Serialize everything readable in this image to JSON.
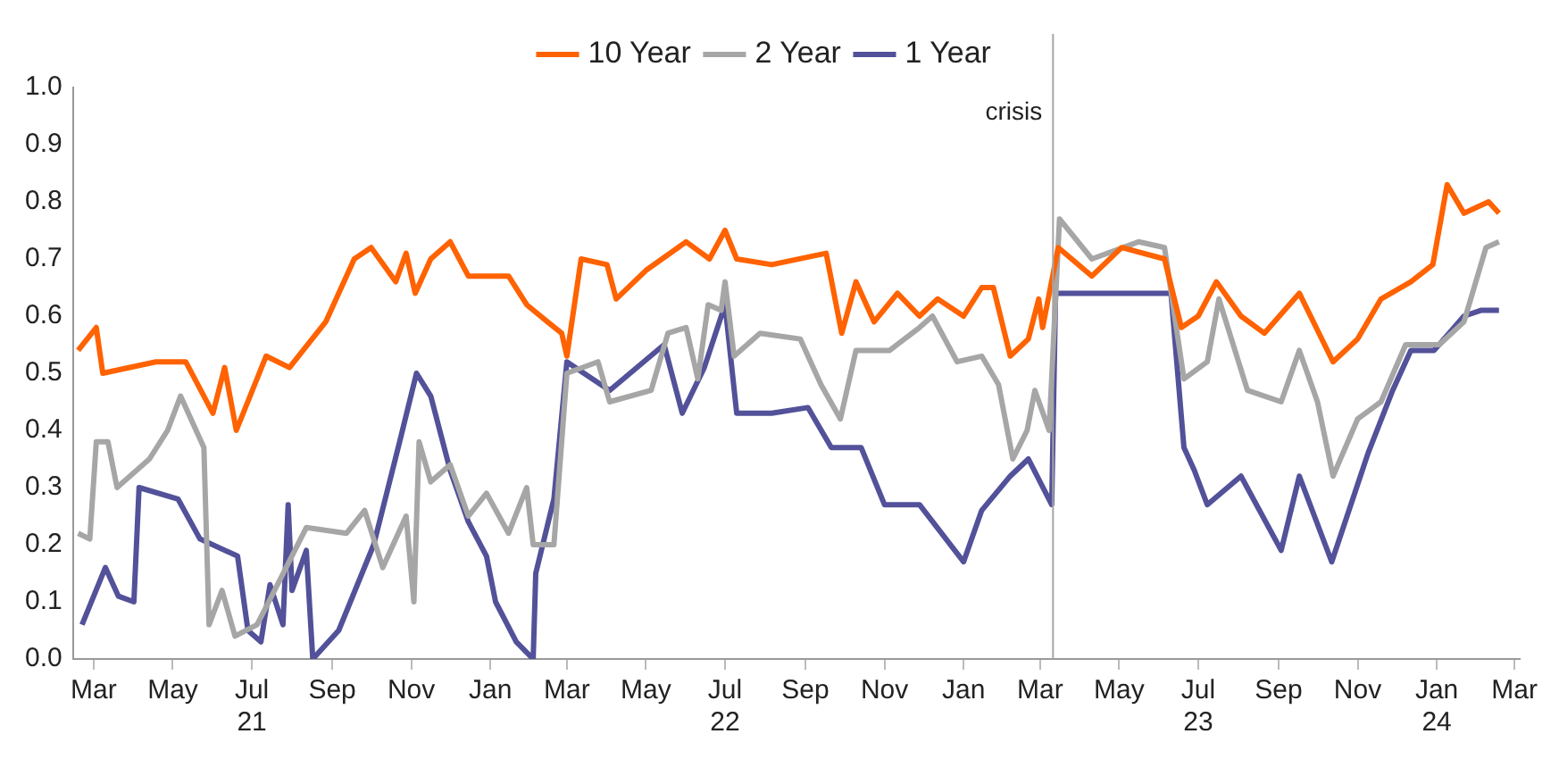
{
  "chart_data": {
    "type": "line",
    "legend": "top",
    "marker": "none",
    "line_style": "solid",
    "xlim": [
      "2021-02-13",
      "2024-03-05"
    ],
    "xticks": [
      {
        "value": "2021-03",
        "label": "Mar"
      },
      {
        "value": "2021-05",
        "label": "May"
      },
      {
        "value": "2021-07",
        "label": "Jul\n21"
      },
      {
        "value": "2021-09",
        "label": "Sep"
      },
      {
        "value": "2021-11",
        "label": "Nov"
      },
      {
        "value": "2022-01",
        "label": "Jan"
      },
      {
        "value": "2022-03",
        "label": "Mar"
      },
      {
        "value": "2022-05",
        "label": "May"
      },
      {
        "value": "2022-07",
        "label": "Jul\n22"
      },
      {
        "value": "2022-09",
        "label": "Sep"
      },
      {
        "value": "2022-11",
        "label": "Nov"
      },
      {
        "value": "2023-01",
        "label": "Jan"
      },
      {
        "value": "2023-03",
        "label": "Mar"
      },
      {
        "value": "2023-05",
        "label": "May"
      },
      {
        "value": "2023-07",
        "label": "Jul\n23"
      },
      {
        "value": "2023-09",
        "label": "Sep"
      },
      {
        "value": "2023-11",
        "label": "Nov"
      },
      {
        "value": "2024-01",
        "label": "Jan\n24"
      },
      {
        "value": "2024-03",
        "label": "Mar"
      }
    ],
    "ylim": [
      0,
      1
    ],
    "yticks": [
      {
        "value": 0,
        "label": "0.0"
      },
      0.1,
      0.2,
      0.3,
      0.4,
      0.5,
      0.6,
      0.7,
      0.8,
      0.9,
      {
        "value": 1,
        "label": "1.0"
      }
    ],
    "ref_lines": [
      {
        "axis": "x",
        "value": "2023-03-11",
        "label": "crisis",
        "color": "#a6a6a6"
      }
    ],
    "series": [
      {
        "name": "10 Year",
        "color": "#ff6200",
        "x": [
          "2021-02-17",
          "2021-03-03",
          "2021-03-08",
          "2021-04-18",
          "2021-05-11",
          "2021-06-01",
          "2021-06-10",
          "2021-06-19",
          "2021-07-12",
          "2021-07-30",
          "2021-08-27",
          "2021-09-18",
          "2021-10-01",
          "2021-10-20",
          "2021-10-28",
          "2021-11-04",
          "2021-11-16",
          "2021-12-01",
          "2021-12-15",
          "2022-01-15",
          "2022-01-29",
          "2022-02-14",
          "2022-02-25",
          "2022-03-01",
          "2022-03-12",
          "2022-04-01",
          "2022-04-08",
          "2022-05-01",
          "2022-06-01",
          "2022-06-19",
          "2022-07-01",
          "2022-07-10",
          "2022-08-06",
          "2022-09-17",
          "2022-09-29",
          "2022-10-10",
          "2022-10-24",
          "2022-11-11",
          "2022-11-28",
          "2022-12-12",
          "2023-01-01",
          "2023-01-15",
          "2023-01-24",
          "2023-02-06",
          "2023-02-20",
          "2023-02-28",
          "2023-03-03",
          "2023-03-15",
          "2023-04-10",
          "2023-05-03",
          "2023-06-05",
          "2023-06-18",
          "2023-07-01",
          "2023-07-15",
          "2023-08-03",
          "2023-08-21",
          "2023-09-17",
          "2023-10-13",
          "2023-11-01",
          "2023-11-19",
          "2023-12-12",
          "2023-12-29",
          "2024-01-09",
          "2024-01-22",
          "2024-02-10",
          "2024-02-18"
        ],
        "values": [
          0.54,
          0.58,
          0.5,
          0.52,
          0.52,
          0.43,
          0.51,
          0.4,
          0.53,
          0.51,
          0.59,
          0.7,
          0.72,
          0.66,
          0.71,
          0.64,
          0.7,
          0.73,
          0.67,
          0.67,
          0.62,
          0.59,
          0.57,
          0.53,
          0.7,
          0.69,
          0.63,
          0.68,
          0.73,
          0.7,
          0.75,
          0.7,
          0.69,
          0.71,
          0.57,
          0.66,
          0.59,
          0.64,
          0.6,
          0.63,
          0.6,
          0.65,
          0.65,
          0.53,
          0.56,
          0.63,
          0.58,
          0.72,
          0.67,
          0.72,
          0.7,
          0.58,
          0.6,
          0.66,
          0.6,
          0.57,
          0.64,
          0.52,
          0.56,
          0.63,
          0.66,
          0.69,
          0.83,
          0.78,
          0.8,
          0.78
        ]
      },
      {
        "name": "2 Year",
        "color": "#a6a6a6",
        "x": [
          "2021-02-17",
          "2021-02-26",
          "2021-03-03",
          "2021-03-12",
          "2021-03-19",
          "2021-04-13",
          "2021-04-27",
          "2021-05-07",
          "2021-05-25",
          "2021-05-29",
          "2021-06-08",
          "2021-06-18",
          "2021-07-05",
          "2021-07-23",
          "2021-08-12",
          "2021-09-12",
          "2021-09-26",
          "2021-10-10",
          "2021-10-28",
          "2021-11-03",
          "2021-11-07",
          "2021-11-16",
          "2021-12-01",
          "2021-12-15",
          "2021-12-29",
          "2022-01-15",
          "2022-01-29",
          "2022-02-03",
          "2022-02-19",
          "2022-03-01",
          "2022-03-25",
          "2022-04-03",
          "2022-05-05",
          "2022-05-18",
          "2022-06-01",
          "2022-06-10",
          "2022-06-18",
          "2022-06-28",
          "2022-07-01",
          "2022-07-08",
          "2022-07-28",
          "2022-08-28",
          "2022-09-13",
          "2022-09-28",
          "2022-10-10",
          "2022-11-05",
          "2022-11-28",
          "2022-12-08",
          "2022-12-27",
          "2023-01-15",
          "2023-01-28",
          "2023-02-08",
          "2023-02-19",
          "2023-02-25",
          "2023-03-08",
          "2023-03-16",
          "2023-04-10",
          "2023-05-16",
          "2023-06-05",
          "2023-06-20",
          "2023-07-08",
          "2023-07-17",
          "2023-08-08",
          "2023-09-03",
          "2023-09-17",
          "2023-10-01",
          "2023-10-13",
          "2023-11-01",
          "2023-11-19",
          "2023-12-08",
          "2024-01-03",
          "2024-01-22",
          "2024-02-08",
          "2024-02-18"
        ],
        "values": [
          0.22,
          0.21,
          0.38,
          0.38,
          0.3,
          0.35,
          0.4,
          0.46,
          0.37,
          0.06,
          0.12,
          0.04,
          0.06,
          0.14,
          0.23,
          0.22,
          0.26,
          0.16,
          0.25,
          0.1,
          0.38,
          0.31,
          0.34,
          0.25,
          0.29,
          0.22,
          0.3,
          0.2,
          0.2,
          0.5,
          0.52,
          0.45,
          0.47,
          0.57,
          0.58,
          0.49,
          0.62,
          0.61,
          0.66,
          0.53,
          0.57,
          0.56,
          0.48,
          0.42,
          0.54,
          0.54,
          0.58,
          0.6,
          0.52,
          0.53,
          0.48,
          0.35,
          0.4,
          0.47,
          0.4,
          0.77,
          0.7,
          0.73,
          0.72,
          0.49,
          0.52,
          0.63,
          0.47,
          0.45,
          0.54,
          0.45,
          0.32,
          0.42,
          0.45,
          0.55,
          0.55,
          0.59,
          0.72,
          0.73
        ]
      },
      {
        "name": "1 Year",
        "color": "#525199",
        "x": [
          "2021-02-20",
          "2021-03-01",
          "2021-03-10",
          "2021-03-20",
          "2021-04-01",
          "2021-04-05",
          "2021-05-05",
          "2021-05-22",
          "2021-06-20",
          "2021-06-28",
          "2021-07-08",
          "2021-07-15",
          "2021-07-25",
          "2021-07-29",
          "2021-08-01",
          "2021-08-12",
          "2021-08-17",
          "2021-09-06",
          "2021-10-03",
          "2021-10-23",
          "2021-11-05",
          "2021-11-16",
          "2021-12-01",
          "2021-12-15",
          "2021-12-29",
          "2022-01-05",
          "2022-01-21",
          "2022-02-03",
          "2022-02-05",
          "2022-02-19",
          "2022-03-01",
          "2022-04-03",
          "2022-05-15",
          "2022-05-29",
          "2022-06-15",
          "2022-07-01",
          "2022-07-10",
          "2022-08-06",
          "2022-09-03",
          "2022-09-21",
          "2022-10-14",
          "2022-11-01",
          "2022-11-28",
          "2023-01-01",
          "2023-01-15",
          "2023-02-06",
          "2023-02-20",
          "2023-03-10",
          "2023-03-13",
          "2023-06-10",
          "2023-06-20",
          "2023-06-28",
          "2023-07-08",
          "2023-08-03",
          "2023-09-03",
          "2023-09-17",
          "2023-10-12",
          "2023-11-09",
          "2023-11-28",
          "2023-12-12",
          "2023-12-30",
          "2024-01-22",
          "2024-02-04",
          "2024-02-18"
        ],
        "values": [
          0.06,
          0.11,
          0.16,
          0.11,
          0.1,
          0.3,
          0.28,
          0.21,
          0.18,
          0.05,
          0.03,
          0.13,
          0.06,
          0.27,
          0.12,
          0.19,
          0,
          0.05,
          0.2,
          0.38,
          0.5,
          0.46,
          0.33,
          0.24,
          0.18,
          0.1,
          0.03,
          0,
          0.15,
          0.28,
          0.52,
          0.47,
          0.55,
          0.43,
          0.51,
          0.62,
          0.43,
          0.43,
          0.44,
          0.37,
          0.37,
          0.27,
          0.27,
          0.17,
          0.26,
          0.32,
          0.35,
          0.27,
          0.64,
          0.64,
          0.37,
          0.33,
          0.27,
          0.32,
          0.19,
          0.32,
          0.17,
          0.36,
          0.47,
          0.54,
          0.54,
          0.6,
          0.61,
          0.61
        ]
      }
    ]
  }
}
